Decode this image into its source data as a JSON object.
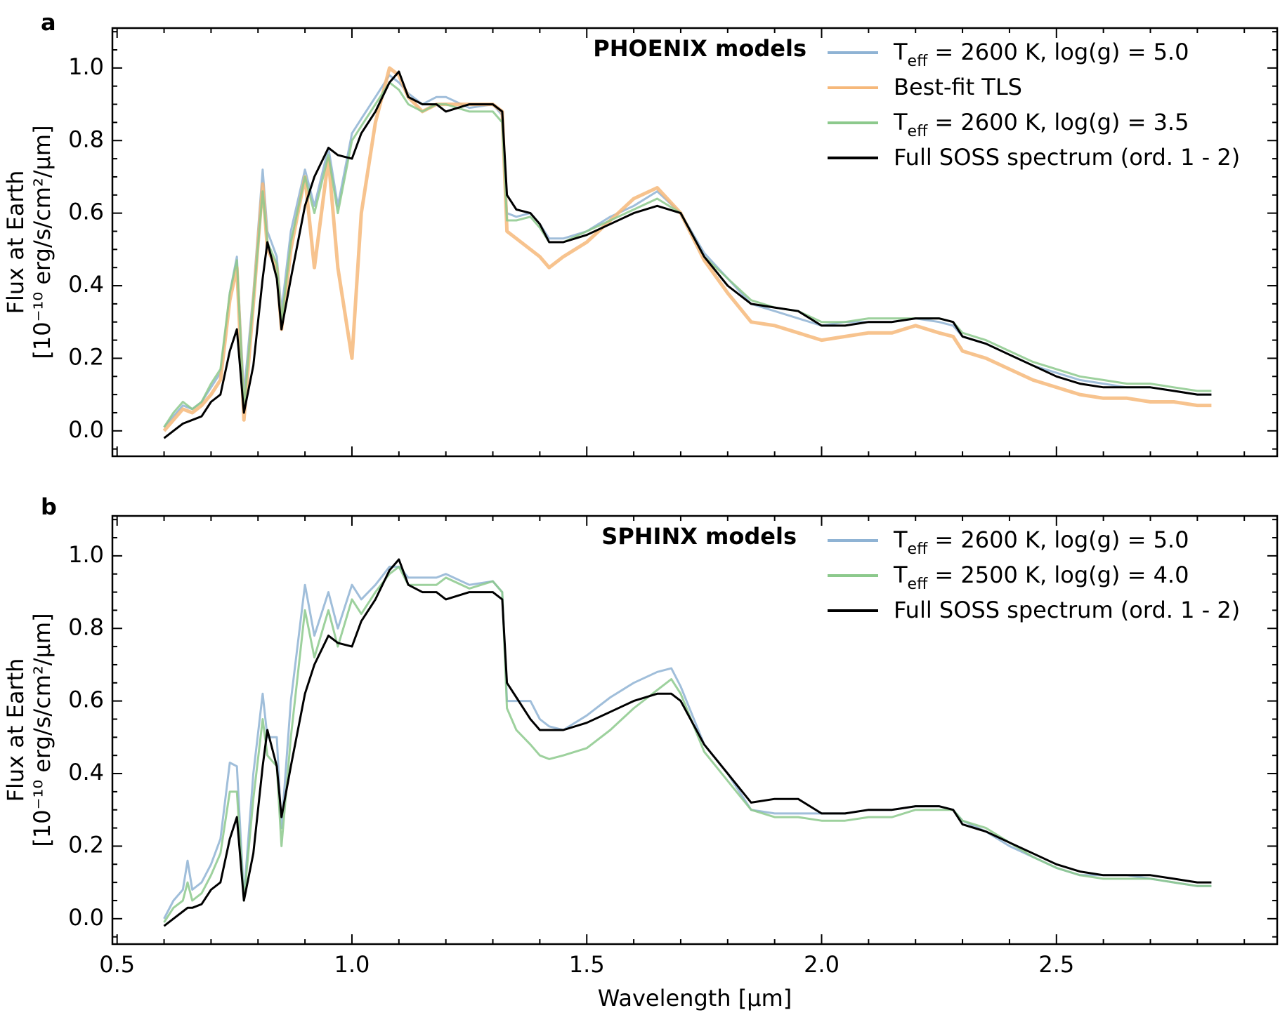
{
  "chart_data": [
    {
      "panel": "a",
      "type": "line",
      "title": "PHOENIX models",
      "xlabel": "",
      "ylabel_line1": "Flux at Earth",
      "ylabel_line2": "[10⁻¹⁰ erg/s/cm²/µm]",
      "xlim": [
        0.49,
        2.97
      ],
      "ylim": [
        -0.07,
        1.11
      ],
      "yticks": [
        0.0,
        0.2,
        0.4,
        0.6,
        0.8,
        1.0
      ],
      "ytick_labels": [
        "0.0",
        "0.2",
        "0.4",
        "0.6",
        "0.8",
        "1.0"
      ],
      "xticks": [
        0.5,
        1.0,
        1.5,
        2.0,
        2.5
      ],
      "ytick_minor_step": 0.05,
      "xtick_minor_step": 0.1,
      "legend_position": "top-right",
      "x": [
        0.6,
        0.62,
        0.64,
        0.66,
        0.68,
        0.7,
        0.72,
        0.74,
        0.755,
        0.77,
        0.79,
        0.81,
        0.82,
        0.84,
        0.85,
        0.87,
        0.9,
        0.92,
        0.95,
        0.97,
        1.0,
        1.02,
        1.05,
        1.08,
        1.1,
        1.12,
        1.15,
        1.18,
        1.2,
        1.25,
        1.3,
        1.32,
        1.33,
        1.35,
        1.38,
        1.4,
        1.42,
        1.45,
        1.5,
        1.55,
        1.6,
        1.65,
        1.7,
        1.75,
        1.8,
        1.85,
        1.9,
        1.95,
        2.0,
        2.05,
        2.1,
        2.15,
        2.2,
        2.25,
        2.28,
        2.3,
        2.35,
        2.4,
        2.45,
        2.5,
        2.55,
        2.6,
        2.65,
        2.7,
        2.75,
        2.8,
        2.83
      ],
      "series": [
        {
          "name_main": "T",
          "name_sub": "eff",
          "name_rest": " = 2600 K, log(g) = 5.0",
          "color": "#8fb3d4",
          "values": [
            0.01,
            0.04,
            0.07,
            0.06,
            0.08,
            0.12,
            0.16,
            0.38,
            0.48,
            0.1,
            0.38,
            0.72,
            0.55,
            0.48,
            0.33,
            0.55,
            0.72,
            0.62,
            0.78,
            0.62,
            0.82,
            0.86,
            0.92,
            0.98,
            0.96,
            0.93,
            0.9,
            0.92,
            0.92,
            0.89,
            0.9,
            0.87,
            0.6,
            0.59,
            0.6,
            0.57,
            0.53,
            0.53,
            0.55,
            0.59,
            0.62,
            0.66,
            0.6,
            0.49,
            0.42,
            0.35,
            0.33,
            0.31,
            0.29,
            0.3,
            0.3,
            0.3,
            0.31,
            0.3,
            0.29,
            0.26,
            0.24,
            0.21,
            0.18,
            0.16,
            0.14,
            0.13,
            0.12,
            0.12,
            0.11,
            0.1,
            0.1
          ]
        },
        {
          "name_main": "Best-fit TLS",
          "name_sub": "",
          "name_rest": "",
          "color": "#f6b87a",
          "values": [
            0.0,
            0.03,
            0.06,
            0.05,
            0.07,
            0.1,
            0.14,
            0.36,
            0.45,
            0.03,
            0.35,
            0.68,
            0.5,
            0.45,
            0.28,
            0.5,
            0.7,
            0.45,
            0.75,
            0.45,
            0.2,
            0.6,
            0.85,
            1.0,
            0.98,
            0.92,
            0.88,
            0.9,
            0.9,
            0.9,
            0.9,
            0.88,
            0.55,
            0.53,
            0.5,
            0.48,
            0.45,
            0.48,
            0.52,
            0.58,
            0.64,
            0.67,
            0.6,
            0.47,
            0.38,
            0.3,
            0.29,
            0.27,
            0.25,
            0.26,
            0.27,
            0.27,
            0.29,
            0.27,
            0.26,
            0.22,
            0.2,
            0.17,
            0.14,
            0.12,
            0.1,
            0.09,
            0.09,
            0.08,
            0.08,
            0.07,
            0.07
          ]
        },
        {
          "name_main": "T",
          "name_sub": "eff",
          "name_rest": " = 2600 K, log(g) = 3.5",
          "color": "#8cc98c",
          "values": [
            0.01,
            0.05,
            0.08,
            0.06,
            0.08,
            0.13,
            0.17,
            0.38,
            0.47,
            0.06,
            0.36,
            0.66,
            0.52,
            0.46,
            0.3,
            0.52,
            0.7,
            0.6,
            0.76,
            0.6,
            0.8,
            0.84,
            0.9,
            0.96,
            0.94,
            0.9,
            0.88,
            0.9,
            0.9,
            0.88,
            0.88,
            0.85,
            0.58,
            0.58,
            0.59,
            0.56,
            0.52,
            0.52,
            0.55,
            0.58,
            0.61,
            0.64,
            0.6,
            0.48,
            0.42,
            0.36,
            0.34,
            0.33,
            0.3,
            0.3,
            0.31,
            0.31,
            0.31,
            0.31,
            0.3,
            0.27,
            0.25,
            0.22,
            0.19,
            0.17,
            0.15,
            0.14,
            0.13,
            0.13,
            0.12,
            0.11,
            0.11
          ]
        },
        {
          "name_main": "Full SOSS spectrum (ord. 1 - 2)",
          "name_sub": "",
          "name_rest": "",
          "color": "#000000",
          "values": [
            -0.02,
            0.0,
            0.02,
            0.03,
            0.04,
            0.08,
            0.1,
            0.22,
            0.28,
            0.05,
            0.18,
            0.42,
            0.52,
            0.42,
            0.28,
            0.42,
            0.62,
            0.7,
            0.78,
            0.76,
            0.75,
            0.82,
            0.88,
            0.96,
            0.99,
            0.92,
            0.9,
            0.9,
            0.88,
            0.9,
            0.9,
            0.88,
            0.65,
            0.61,
            0.6,
            0.57,
            0.52,
            0.52,
            0.54,
            0.57,
            0.6,
            0.62,
            0.6,
            0.48,
            0.4,
            0.35,
            0.34,
            0.33,
            0.29,
            0.29,
            0.3,
            0.3,
            0.31,
            0.31,
            0.3,
            0.26,
            0.24,
            0.21,
            0.18,
            0.15,
            0.13,
            0.12,
            0.12,
            0.12,
            0.11,
            0.1,
            0.1
          ]
        }
      ]
    },
    {
      "panel": "b",
      "type": "line",
      "title": "SPHINX models",
      "xlabel": "Wavelength [µm]",
      "ylabel_line1": "Flux at Earth",
      "ylabel_line2": "[10⁻¹⁰ erg/s/cm²/µm]",
      "xlim": [
        0.49,
        2.97
      ],
      "ylim": [
        -0.07,
        1.11
      ],
      "yticks": [
        0.0,
        0.2,
        0.4,
        0.6,
        0.8,
        1.0
      ],
      "ytick_labels": [
        "0.0",
        "0.2",
        "0.4",
        "0.6",
        "0.8",
        "1.0"
      ],
      "xticks": [
        0.5,
        1.0,
        1.5,
        2.0,
        2.5
      ],
      "xtick_labels": [
        "0.5",
        "1.0",
        "1.5",
        "2.0",
        "2.5"
      ],
      "ytick_minor_step": 0.05,
      "xtick_minor_step": 0.1,
      "legend_position": "top-right",
      "x": [
        0.6,
        0.62,
        0.64,
        0.65,
        0.66,
        0.68,
        0.7,
        0.72,
        0.74,
        0.755,
        0.77,
        0.79,
        0.81,
        0.82,
        0.84,
        0.85,
        0.87,
        0.9,
        0.92,
        0.95,
        0.97,
        1.0,
        1.02,
        1.05,
        1.08,
        1.1,
        1.12,
        1.15,
        1.18,
        1.2,
        1.25,
        1.3,
        1.32,
        1.33,
        1.35,
        1.38,
        1.4,
        1.42,
        1.45,
        1.5,
        1.55,
        1.6,
        1.65,
        1.68,
        1.7,
        1.75,
        1.8,
        1.85,
        1.9,
        1.95,
        2.0,
        2.05,
        2.1,
        2.15,
        2.2,
        2.25,
        2.28,
        2.3,
        2.35,
        2.4,
        2.45,
        2.5,
        2.55,
        2.6,
        2.65,
        2.7,
        2.75,
        2.8,
        2.83
      ],
      "series": [
        {
          "name_main": "T",
          "name_sub": "eff",
          "name_rest": " = 2600 K, log(g) = 5.0",
          "color": "#8fb3d4",
          "values": [
            0.0,
            0.05,
            0.08,
            0.16,
            0.08,
            0.1,
            0.15,
            0.22,
            0.43,
            0.42,
            0.06,
            0.4,
            0.62,
            0.5,
            0.5,
            0.25,
            0.6,
            0.92,
            0.78,
            0.9,
            0.8,
            0.92,
            0.88,
            0.92,
            0.97,
            0.97,
            0.94,
            0.94,
            0.94,
            0.95,
            0.92,
            0.93,
            0.9,
            0.6,
            0.6,
            0.6,
            0.55,
            0.53,
            0.52,
            0.56,
            0.61,
            0.65,
            0.68,
            0.69,
            0.64,
            0.48,
            0.4,
            0.3,
            0.29,
            0.29,
            0.29,
            0.29,
            0.3,
            0.3,
            0.31,
            0.31,
            0.3,
            0.27,
            0.24,
            0.2,
            0.17,
            0.14,
            0.12,
            0.12,
            0.12,
            0.11,
            0.1,
            0.09,
            0.09
          ]
        },
        {
          "name_main": "T",
          "name_sub": "eff",
          "name_rest": " = 2500 K, log(g) = 4.0",
          "color": "#8cc98c",
          "values": [
            -0.01,
            0.03,
            0.05,
            0.1,
            0.05,
            0.07,
            0.12,
            0.18,
            0.35,
            0.35,
            0.05,
            0.33,
            0.55,
            0.45,
            0.42,
            0.2,
            0.5,
            0.85,
            0.72,
            0.85,
            0.75,
            0.88,
            0.84,
            0.9,
            0.95,
            0.97,
            0.92,
            0.92,
            0.92,
            0.94,
            0.91,
            0.93,
            0.9,
            0.58,
            0.52,
            0.48,
            0.45,
            0.44,
            0.45,
            0.47,
            0.52,
            0.58,
            0.63,
            0.66,
            0.62,
            0.46,
            0.38,
            0.3,
            0.28,
            0.28,
            0.27,
            0.27,
            0.28,
            0.28,
            0.3,
            0.3,
            0.3,
            0.27,
            0.25,
            0.21,
            0.17,
            0.14,
            0.12,
            0.11,
            0.11,
            0.11,
            0.1,
            0.09,
            0.09
          ]
        },
        {
          "name_main": "Full SOSS spectrum (ord. 1 - 2)",
          "name_sub": "",
          "name_rest": "",
          "color": "#000000",
          "values": [
            -0.02,
            0.0,
            0.02,
            0.03,
            0.03,
            0.04,
            0.08,
            0.1,
            0.22,
            0.28,
            0.05,
            0.18,
            0.42,
            0.52,
            0.42,
            0.28,
            0.42,
            0.62,
            0.7,
            0.78,
            0.76,
            0.75,
            0.82,
            0.88,
            0.96,
            0.99,
            0.92,
            0.9,
            0.9,
            0.88,
            0.9,
            0.9,
            0.88,
            0.65,
            0.61,
            0.55,
            0.52,
            0.52,
            0.52,
            0.54,
            0.57,
            0.6,
            0.62,
            0.62,
            0.6,
            0.48,
            0.4,
            0.32,
            0.33,
            0.33,
            0.29,
            0.29,
            0.3,
            0.3,
            0.31,
            0.31,
            0.3,
            0.26,
            0.24,
            0.21,
            0.18,
            0.15,
            0.13,
            0.12,
            0.12,
            0.12,
            0.11,
            0.1,
            0.1
          ]
        }
      ]
    }
  ]
}
